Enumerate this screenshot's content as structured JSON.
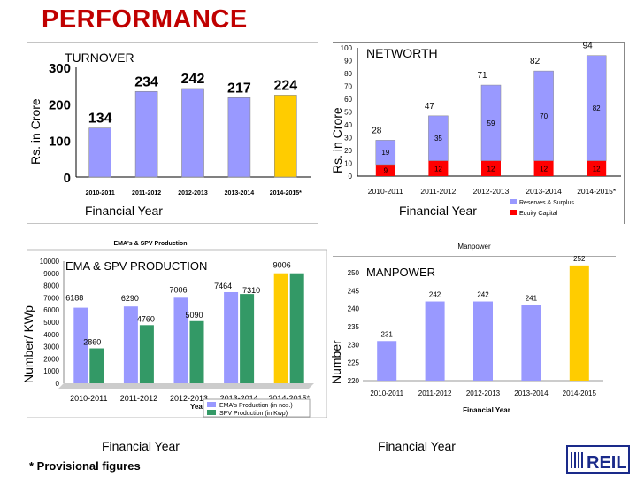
{
  "page": {
    "title": "PERFORMANCE",
    "footnote": "* Provisional figures",
    "logo_text": "REIL"
  },
  "chart_data": [
    {
      "id": "turnover",
      "type": "bar",
      "title": "TURNOVER",
      "xlabel": "Financial Year",
      "ylabel": "Rs. in Crore",
      "categories": [
        "2010-2011",
        "2011-2012",
        "2012-2013",
        "2013-2014",
        "2014-2015*"
      ],
      "values": [
        134,
        234,
        242,
        217,
        224
      ],
      "ylim": [
        0,
        300
      ],
      "yticks": [
        0,
        100,
        200,
        300
      ],
      "colors": [
        "#9999ff",
        "#9999ff",
        "#9999ff",
        "#9999ff",
        "#ffcc00"
      ]
    },
    {
      "id": "networth",
      "type": "bar",
      "title": "NETWORTH",
      "xlabel": "Financial Year",
      "ylabel": "Rs. in Crore",
      "categories": [
        "2010-2011",
        "2011-2012",
        "2012-2013",
        "2013-2014",
        "2014-2015*"
      ],
      "series": [
        {
          "name": "Equity Capital",
          "values": [
            9,
            12,
            12,
            12,
            12
          ],
          "labels": [
            "9",
            "12",
            "12",
            "12",
            "12"
          ]
        },
        {
          "name": "Reserves & Surplus",
          "values": [
            19,
            35,
            59,
            70,
            82
          ],
          "labels": [
            "19",
            "35",
            "59",
            "70",
            "82"
          ]
        }
      ],
      "totals": [
        28,
        47,
        71,
        82,
        94
      ],
      "ylim": [
        0,
        100
      ],
      "yticks": [
        0,
        10,
        20,
        30,
        40,
        50,
        60,
        70,
        80,
        90,
        100
      ],
      "colors": {
        "Reserves & Surplus": "#9999ff",
        "Equity Capital": "#ff0000"
      }
    },
    {
      "id": "ema-spv",
      "type": "bar",
      "title": "EMA & SPV PRODUCTION",
      "caption": "EMA's & SPV Production",
      "xlabel": "Financial Year",
      "ylabel": "Number/ KWp",
      "year_label": "Year",
      "categories": [
        "2010-2011",
        "2011-2012",
        "2012-2013",
        "2013-2014",
        "2014-2015*"
      ],
      "series": [
        {
          "name": "EMA's Production (in nos.)",
          "values": [
            6188,
            6290,
            7006,
            7464,
            9006
          ]
        },
        {
          "name": "SPV Production (in Kwp)",
          "values": [
            2860,
            4760,
            5090,
            7310,
            9006
          ]
        }
      ],
      "point_labels": [
        "6188",
        "2860",
        "6290",
        "4760",
        "7006",
        "5090",
        "7464",
        "7310",
        "9006"
      ],
      "ylim": [
        0,
        10000
      ],
      "yticks": [
        0,
        1000,
        2000,
        3000,
        4000,
        5000,
        6000,
        7000,
        8000,
        9000,
        10000
      ],
      "colors": [
        "#9999ff",
        "#339966"
      ],
      "highlight_color": "#ffcc00"
    },
    {
      "id": "manpower",
      "type": "bar",
      "title": "MANPOWER",
      "caption": "Manpower",
      "xlabel": "Financial Year",
      "inner_xlabel": "Financial Year",
      "ylabel": "Number",
      "categories": [
        "2010-2011",
        "2011-2012",
        "2012-2013",
        "2013-2014",
        "2014-2015"
      ],
      "values": [
        231,
        242,
        242,
        241,
        252
      ],
      "ylim": [
        220,
        250
      ],
      "yticks": [
        220,
        225,
        230,
        235,
        240,
        245,
        250
      ],
      "colors": [
        "#9999ff",
        "#9999ff",
        "#9999ff",
        "#9999ff",
        "#ffcc00"
      ]
    }
  ]
}
